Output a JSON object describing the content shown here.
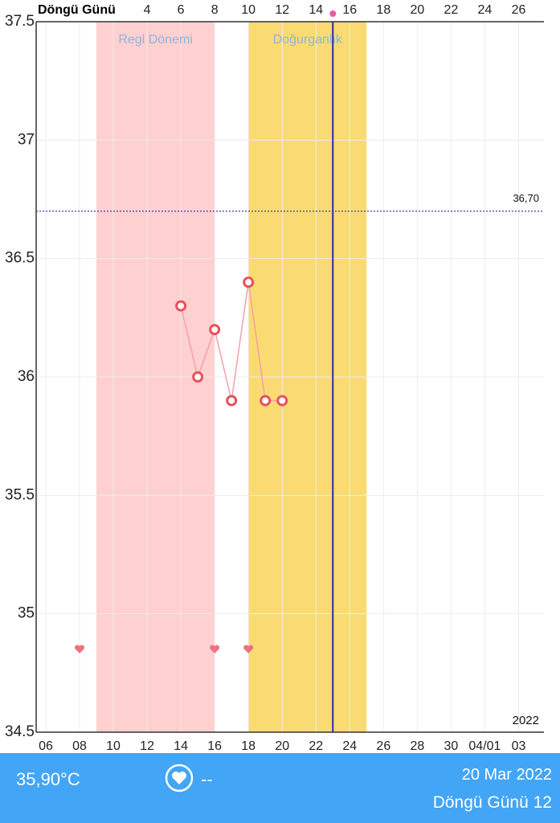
{
  "chart_data": {
    "type": "line",
    "x2_label": "Döngü Günü",
    "x": [
      14,
      15,
      16,
      17,
      18,
      19,
      20
    ],
    "series": [
      {
        "color": "#e8505b",
        "values": [
          36.3,
          36.0,
          36.2,
          35.9,
          36.4,
          35.9,
          35.9
        ]
      }
    ],
    "xlim": [
      5.43,
      35.5
    ],
    "xticks": [
      {
        "value": 6,
        "label": "06"
      },
      {
        "value": 8,
        "label": "08"
      },
      10,
      12,
      14,
      16,
      18,
      20,
      22,
      24,
      26,
      28,
      30,
      {
        "value": 32,
        "label": "04/01"
      },
      {
        "value": 34,
        "label": "03"
      }
    ],
    "x2lim": [
      -2.57,
      27.5
    ],
    "x2ticks": [
      4,
      6,
      8,
      10,
      12,
      14,
      16,
      18,
      20,
      22,
      24,
      26
    ],
    "ylim": [
      34.5,
      37.5
    ],
    "yticks": [
      34.5,
      35,
      35.5,
      36,
      36.5,
      37,
      37.5
    ],
    "grid": true,
    "bands": [
      {
        "label": "Regl Dönemi",
        "start": 9,
        "end": 16,
        "color": "#ffd0d0"
      },
      {
        "label": "Doğurganlık",
        "start": 18,
        "end": 25,
        "color": "#fadb73"
      }
    ],
    "today": 23,
    "threshold": {
      "value": 36.7,
      "label": "36,70"
    },
    "hearts": [
      8,
      16,
      18
    ],
    "year_label": "2022"
  },
  "status": {
    "temperature": "35,90°C",
    "note": "--",
    "date": "20 Mar 2022",
    "cycle_day": "Döngü Günü 12"
  }
}
